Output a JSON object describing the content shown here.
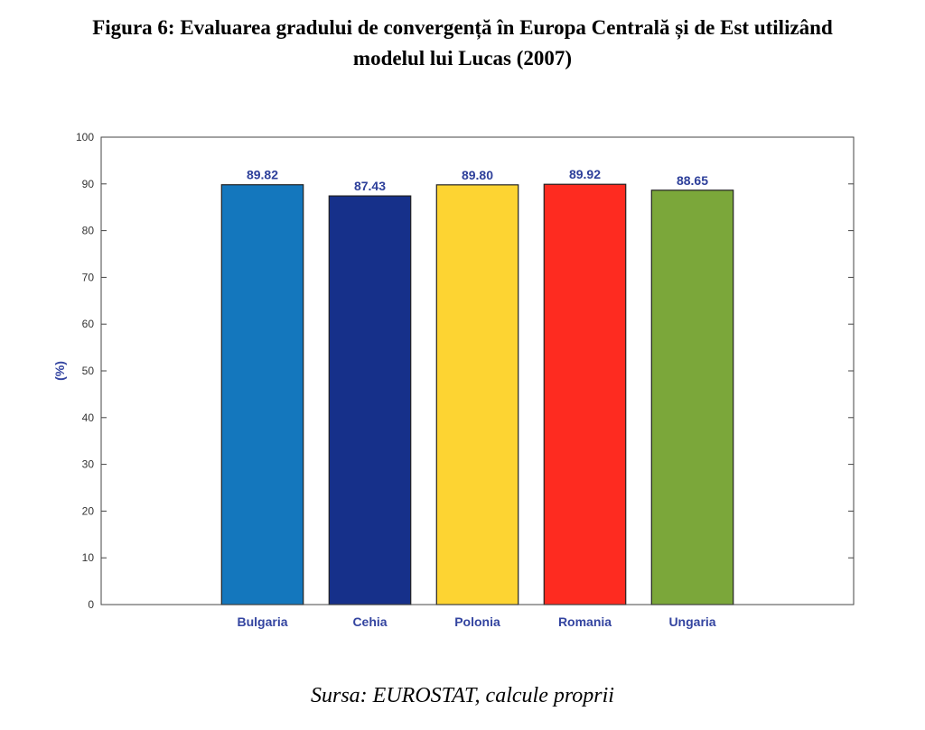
{
  "figure": {
    "title_line1": "Figura 6: Evaluarea gradului de convergență în Europa Centrală și de Est utilizând",
    "title_line2": "modelul lui Lucas (2007)",
    "source": "Sursa: EUROSTAT, calcule proprii"
  },
  "chart_data": {
    "type": "bar",
    "categories": [
      "Bulgaria",
      "Cehia",
      "Polonia",
      "Romania",
      "Ungaria"
    ],
    "values": [
      89.82,
      87.43,
      89.8,
      89.92,
      88.65
    ],
    "value_labels": [
      "89.82",
      "87.43",
      "89.80",
      "89.92",
      "88.65"
    ],
    "colors": [
      "#1477bd",
      "#16308a",
      "#fdd432",
      "#fe2b20",
      "#7ba73a"
    ],
    "title": "",
    "xlabel": "",
    "ylabel": "(%)",
    "ylim": [
      0,
      100
    ],
    "yticks": [
      0,
      10,
      20,
      30,
      40,
      50,
      60,
      70,
      80,
      90,
      100
    ],
    "grid": false
  }
}
